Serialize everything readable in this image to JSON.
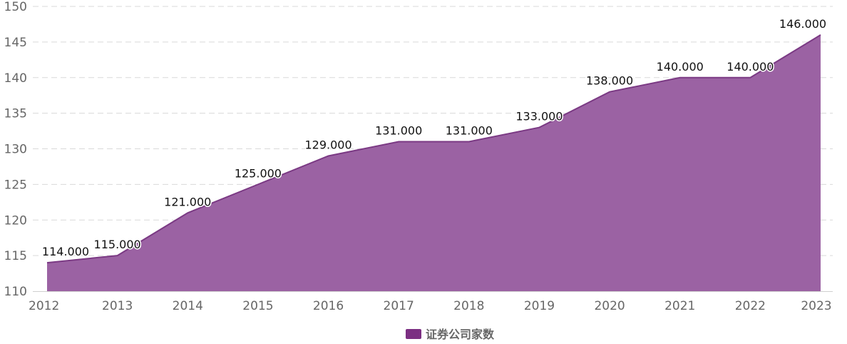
{
  "chart_data": {
    "type": "area",
    "categories": [
      "2012",
      "2013",
      "2014",
      "2015",
      "2016",
      "2017",
      "2018",
      "2019",
      "2020",
      "2021",
      "2022",
      "2023"
    ],
    "series": [
      {
        "name": "证券公司家数",
        "values": [
          114,
          115,
          121,
          125,
          129,
          131,
          131,
          133,
          138,
          140,
          140,
          146
        ],
        "data_labels": [
          "114.000",
          "115.000",
          "121.000",
          "125.000",
          "129.000",
          "131.000",
          "131.000",
          "133.000",
          "138.000",
          "140.000",
          "140.000",
          "146.000"
        ]
      }
    ],
    "ylim": [
      110,
      150
    ],
    "yticks": [
      110,
      115,
      120,
      125,
      130,
      135,
      140,
      145,
      150
    ],
    "grid": true,
    "legend_position": "bottom-center",
    "colors": {
      "area_fill": "#9b62a3",
      "line": "#7b3a84",
      "legend_swatch": "#7b2f82",
      "grid": "#d9d9d9"
    }
  }
}
